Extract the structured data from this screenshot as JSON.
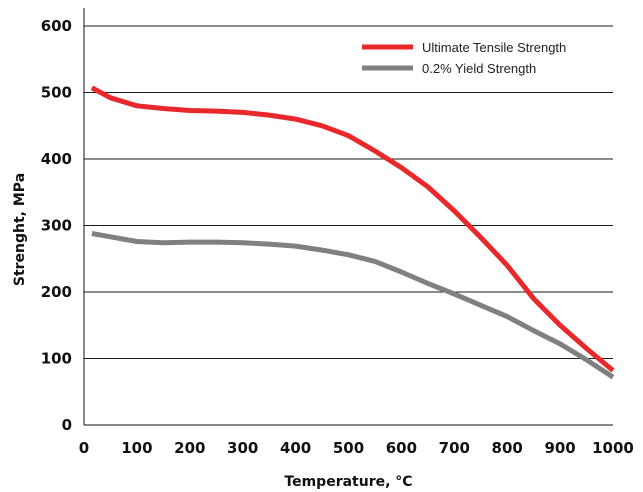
{
  "chart_data": {
    "type": "line",
    "xlabel": "Temperature, °C",
    "ylabel": "Strenght, MPa",
    "xlim": [
      0,
      1000
    ],
    "ylim": [
      0,
      600
    ],
    "x_ticks": [
      0,
      100,
      200,
      300,
      400,
      500,
      600,
      700,
      800,
      900,
      1000
    ],
    "y_ticks": [
      0,
      100,
      200,
      300,
      400,
      500,
      600
    ],
    "grid": "horizontal",
    "legend_position": "top-right",
    "series": [
      {
        "name": "Ultimate Tensile Strength",
        "color": "#e8282b",
        "x": [
          15,
          50,
          100,
          150,
          200,
          250,
          300,
          350,
          400,
          450,
          500,
          550,
          600,
          650,
          700,
          750,
          800,
          850,
          900,
          950,
          1000
        ],
        "y": [
          507,
          492,
          480,
          476,
          473,
          472,
          470,
          466,
          460,
          450,
          435,
          412,
          387,
          358,
          322,
          282,
          240,
          190,
          150,
          115,
          82
        ]
      },
      {
        "name": "0.2% Yield Strength",
        "color": "#808080",
        "x": [
          15,
          50,
          100,
          150,
          200,
          250,
          300,
          350,
          400,
          450,
          500,
          550,
          600,
          650,
          700,
          750,
          800,
          850,
          900,
          950,
          1000
        ],
        "y": [
          288,
          283,
          276,
          274,
          275,
          275,
          274,
          272,
          269,
          263,
          256,
          246,
          230,
          213,
          197,
          180,
          163,
          142,
          122,
          98,
          72
        ]
      }
    ]
  }
}
